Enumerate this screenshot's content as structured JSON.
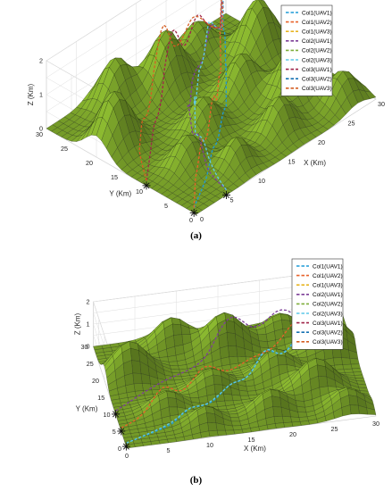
{
  "chart_data": [
    {
      "type": "surface",
      "caption": "(a)",
      "xlabel": "X (Km)",
      "ylabel": "Y (Km)",
      "zlabel": "Z (Km)",
      "xlim": [
        0,
        30
      ],
      "ylim": [
        0,
        30
      ],
      "zlim": [
        0,
        2
      ],
      "xticks": [
        "0",
        "5",
        "10",
        "15",
        "20",
        "25",
        "30"
      ],
      "yticks": [
        "0",
        "5",
        "10",
        "15",
        "20",
        "25",
        "30"
      ],
      "zticks": [
        "0",
        "1",
        "2"
      ],
      "grid": true,
      "surface_color": "#7aa22a",
      "legend_position": "top-right",
      "legend": [
        {
          "label": "Col1(UAV1)",
          "color": "#1f9bd7"
        },
        {
          "label": "Col1(UAV2)",
          "color": "#e8632b"
        },
        {
          "label": "Col1(UAV3)",
          "color": "#e8b523"
        },
        {
          "label": "Col2(UAV1)",
          "color": "#7d3f98"
        },
        {
          "label": "Col2(UAV2)",
          "color": "#7fae3b"
        },
        {
          "label": "Col2(UAV3)",
          "color": "#5fc8e8"
        },
        {
          "label": "Col3(UAV1)",
          "color": "#a0264a"
        },
        {
          "label": "Col3(UAV2)",
          "color": "#1672b3"
        },
        {
          "label": "Col3(UAV3)",
          "color": "#d55f24"
        }
      ],
      "start_points": [
        [
          0,
          0.5
        ],
        [
          5,
          0
        ],
        [
          0,
          10
        ]
      ],
      "goal_point": [
        27,
        27,
        2
      ],
      "paths": [
        {
          "series": 0,
          "points": [
            [
              0,
              0.5
            ],
            [
              5,
              4
            ],
            [
              10,
              8
            ],
            [
              15,
              12
            ],
            [
              20,
              18
            ],
            [
              24,
              23
            ],
            [
              27,
              27
            ]
          ]
        },
        {
          "series": 1,
          "points": [
            [
              0,
              0.5
            ],
            [
              4,
              5
            ],
            [
              9,
              9
            ],
            [
              14,
              13
            ],
            [
              20,
              19
            ],
            [
              24,
              24
            ],
            [
              27,
              27
            ]
          ]
        },
        {
          "series": 3,
          "points": [
            [
              5,
              0
            ],
            [
              6,
              5
            ],
            [
              8,
              10
            ],
            [
              11,
              15
            ],
            [
              16,
              20
            ],
            [
              22,
              24
            ],
            [
              27,
              27
            ]
          ]
        },
        {
          "series": 5,
          "points": [
            [
              5,
              0
            ],
            [
              7,
              6
            ],
            [
              9,
              11
            ],
            [
              13,
              16
            ],
            [
              18,
              21
            ],
            [
              23,
              25
            ],
            [
              27,
              27
            ]
          ]
        },
        {
          "series": 6,
          "points": [
            [
              0,
              10
            ],
            [
              4,
              14
            ],
            [
              8,
              18
            ],
            [
              13,
              22
            ],
            [
              19,
              25
            ],
            [
              24,
              27
            ],
            [
              27,
              27
            ]
          ]
        },
        {
          "series": 8,
          "points": [
            [
              0,
              10
            ],
            [
              3,
              15
            ],
            [
              7,
              19
            ],
            [
              12,
              23
            ],
            [
              18,
              26
            ],
            [
              23,
              27
            ],
            [
              27,
              27
            ]
          ]
        }
      ]
    },
    {
      "type": "surface",
      "caption": "(b)",
      "xlabel": "X (Km)",
      "ylabel": "Y (Km)",
      "zlabel": "Z (Km)",
      "xlim": [
        0,
        30
      ],
      "ylim": [
        0,
        30
      ],
      "zlim": [
        0,
        2
      ],
      "xticks": [
        "0",
        "5",
        "10",
        "15",
        "20",
        "25",
        "30"
      ],
      "yticks": [
        "0",
        "5",
        "10",
        "15",
        "20",
        "25",
        "30"
      ],
      "zticks": [
        "0",
        "1",
        "2"
      ],
      "grid": true,
      "surface_color": "#7aa22a",
      "legend_position": "top-right",
      "legend": [
        {
          "label": "Col1(UAV1)",
          "color": "#1f9bd7"
        },
        {
          "label": "Col1(UAV2)",
          "color": "#e8632b"
        },
        {
          "label": "Col1(UAV3)",
          "color": "#e8b523"
        },
        {
          "label": "Col2(UAV1)",
          "color": "#7d3f98"
        },
        {
          "label": "Col2(UAV2)",
          "color": "#7fae3b"
        },
        {
          "label": "Col2(UAV3)",
          "color": "#5fc8e8"
        },
        {
          "label": "Col3(UAV1)",
          "color": "#a0264a"
        },
        {
          "label": "Col3(UAV2)",
          "color": "#1672b3"
        },
        {
          "label": "Col3(UAV3)",
          "color": "#d55f24"
        }
      ],
      "start_points": [
        [
          0,
          0.5
        ],
        [
          0,
          5
        ],
        [
          0,
          10
        ]
      ],
      "goal_point": [
        27,
        27,
        2
      ],
      "paths": [
        {
          "series": 0,
          "points": [
            [
              0,
              0.5
            ],
            [
              6,
              4
            ],
            [
              12,
              9
            ],
            [
              17,
              14
            ],
            [
              22,
              20
            ],
            [
              25,
              24
            ],
            [
              27,
              27
            ]
          ]
        },
        {
          "series": 1,
          "points": [
            [
              0,
              5
            ],
            [
              5,
              9
            ],
            [
              10,
              13
            ],
            [
              15,
              17
            ],
            [
              20,
              21
            ],
            [
              24,
              25
            ],
            [
              27,
              27
            ]
          ]
        },
        {
          "series": 3,
          "points": [
            [
              0,
              10
            ],
            [
              4,
              14
            ],
            [
              9,
              18
            ],
            [
              14,
              22
            ],
            [
              19,
              25
            ],
            [
              24,
              27
            ],
            [
              27,
              27
            ]
          ]
        },
        {
          "series": 5,
          "points": [
            [
              0,
              0.5
            ],
            [
              7,
              5
            ],
            [
              13,
              10
            ],
            [
              18,
              15
            ],
            [
              23,
              21
            ],
            [
              26,
              25
            ],
            [
              27,
              27
            ]
          ]
        }
      ]
    }
  ]
}
